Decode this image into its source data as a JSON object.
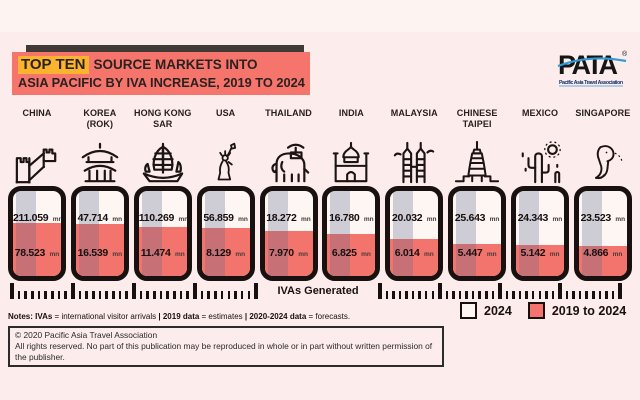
{
  "header": {
    "highlight": "TOP TEN",
    "title_rest": "SOURCE MARKETS INTO",
    "title_line2": "ASIA PACIFIC BY IVA INCREASE, 2019 TO 2024"
  },
  "logo": {
    "wordmark": "PATA",
    "registered": "®",
    "tagline": "Pacific Asia Travel Association"
  },
  "unit": "mn",
  "axis_label": "IVAs Generated",
  "legend": [
    {
      "label": "2024",
      "swatch": "white"
    },
    {
      "label": "2019 to 2024",
      "swatch": "red"
    }
  ],
  "chart_data": {
    "type": "bar",
    "title": "TOP TEN SOURCE MARKETS INTO ASIA PACIFIC BY IVA INCREASE, 2019 TO 2024",
    "unit": "mn (millions of international visitor arrivals)",
    "categories": [
      "CHINA",
      "KOREA (ROK)",
      "HONG KONG SAR",
      "USA",
      "THAILAND",
      "INDIA",
      "MALAYSIA",
      "CHINESE TAIPEI",
      "MEXICO",
      "SINGAPORE"
    ],
    "series": [
      {
        "name": "2024",
        "values": [
          211.059,
          47.714,
          110.269,
          56.859,
          18.272,
          16.78,
          20.032,
          25.643,
          24.343,
          23.523
        ]
      },
      {
        "name": "2019 to 2024",
        "values": [
          78.523,
          16.539,
          11.474,
          8.129,
          7.97,
          6.825,
          6.014,
          5.447,
          5.142,
          4.866
        ]
      }
    ],
    "annotation": "IVAs Generated",
    "legend_position": "bottom-right"
  },
  "columns": [
    {
      "name_line1": "CHINA",
      "name_line2": "",
      "icon": "great-wall-icon",
      "value_2024": "211.059",
      "value_increase": "78.523",
      "fill_pct": 62
    },
    {
      "name_line1": "KOREA",
      "name_line2": "(ROK)",
      "icon": "temple-icon",
      "value_2024": "47.714",
      "value_increase": "16.539",
      "fill_pct": 61
    },
    {
      "name_line1": "HONG KONG",
      "name_line2": "SAR",
      "icon": "junk-boat-icon",
      "value_2024": "110.269",
      "value_increase": "11.474",
      "fill_pct": 58
    },
    {
      "name_line1": "USA",
      "name_line2": "",
      "icon": "statue-of-liberty-icon",
      "value_2024": "56.859",
      "value_increase": "8.129",
      "fill_pct": 56
    },
    {
      "name_line1": "THAILAND",
      "name_line2": "",
      "icon": "elephant-icon",
      "value_2024": "18.272",
      "value_increase": "7.970",
      "fill_pct": 53
    },
    {
      "name_line1": "INDIA",
      "name_line2": "",
      "icon": "taj-mahal-icon",
      "value_2024": "16.780",
      "value_increase": "6.825",
      "fill_pct": 49
    },
    {
      "name_line1": "MALAYSIA",
      "name_line2": "",
      "icon": "twin-towers-icon",
      "value_2024": "20.032",
      "value_increase": "6.014",
      "fill_pct": 44
    },
    {
      "name_line1": "CHINESE",
      "name_line2": "TAIPEI",
      "icon": "taipei-101-icon",
      "value_2024": "25.643",
      "value_increase": "5.447",
      "fill_pct": 38
    },
    {
      "name_line1": "MEXICO",
      "name_line2": "",
      "icon": "cactus-sun-icon",
      "value_2024": "24.343",
      "value_increase": "5.142",
      "fill_pct": 36
    },
    {
      "name_line1": "SINGAPORE",
      "name_line2": "",
      "icon": "merlion-icon",
      "value_2024": "23.523",
      "value_increase": "4.866",
      "fill_pct": 35
    }
  ],
  "ticks": {
    "groups": 2,
    "segments_per_group": 4,
    "shorts_per_segment": 8
  },
  "notes_segments": [
    {
      "t": "Notes: ",
      "b": true
    },
    {
      "t": "IVAs",
      "b": true
    },
    {
      "t": " = international visitor arrivals ",
      "b": false
    },
    {
      "t": "| ",
      "b": true
    },
    {
      "t": "2019 data",
      "b": true
    },
    {
      "t": " = estimates ",
      "b": false
    },
    {
      "t": "| ",
      "b": true
    },
    {
      "t": "2020-2024 data",
      "b": true
    },
    {
      "t": " = forecasts.",
      "b": false
    }
  ],
  "copyright": {
    "line1": "© 2020 Pacific Asia Travel Association",
    "line2": "All rights reserved. No part of this publication may be reproduced in whole or in part without written permission of the publisher."
  },
  "colors": {
    "background": "#fceceb",
    "banner": "#f5746b",
    "banner_shadow": "#403a37",
    "highlight_yellow": "#fcb32d",
    "bar_outline": "#191110",
    "bar_white": "#fdf6f2",
    "bar_red": "#f3746c",
    "logo_blue": "#2f9cd8"
  }
}
